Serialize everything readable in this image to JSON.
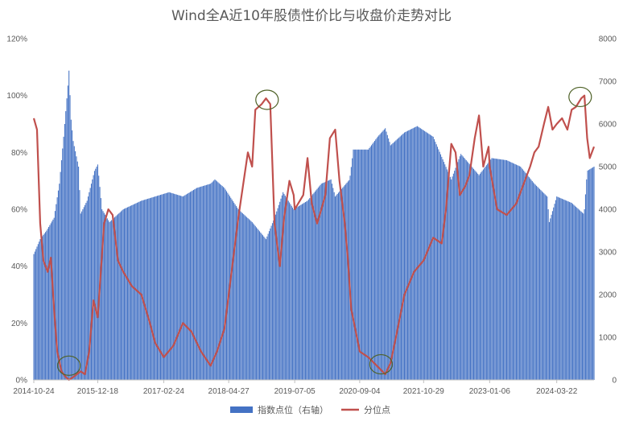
{
  "chart_data": {
    "type": "bar+line",
    "title": "Wind全A近10年股债性价比与收盘价走势对比",
    "x_tick_labels": [
      "2014-10-24",
      "2015-12-18",
      "2017-02-24",
      "2018-04-27",
      "2019-07-05",
      "2020-09-04",
      "2021-10-29",
      "2023-01-06",
      "2024-03-22"
    ],
    "y_left": {
      "ticks": [
        "0%",
        "20%",
        "40%",
        "60%",
        "80%",
        "100%",
        "120%"
      ],
      "min": 0,
      "max": 1.2
    },
    "y_right": {
      "ticks": [
        "0",
        "1000",
        "2000",
        "3000",
        "4000",
        "5000",
        "6000",
        "7000",
        "8000"
      ],
      "min": 0,
      "max": 8000
    },
    "series": [
      {
        "name": "指数点位（右轴）",
        "type": "bar",
        "axis": "right",
        "color": "#4472C4",
        "points": [
          [
            "2014-10-24",
            2950
          ],
          [
            "2014-12-05",
            3300
          ],
          [
            "2015-01-16",
            3500
          ],
          [
            "2015-03-06",
            3800
          ],
          [
            "2015-04-10",
            4600
          ],
          [
            "2015-05-08",
            5700
          ],
          [
            "2015-06-05",
            6900
          ],
          [
            "2015-06-12",
            7250
          ],
          [
            "2015-06-26",
            6100
          ],
          [
            "2015-07-10",
            5600
          ],
          [
            "2015-08-14",
            5000
          ],
          [
            "2015-08-28",
            3900
          ],
          [
            "2015-10-09",
            4200
          ],
          [
            "2015-11-27",
            4900
          ],
          [
            "2015-12-18",
            5050
          ],
          [
            "2016-01-15",
            4000
          ],
          [
            "2016-03-04",
            3700
          ],
          [
            "2016-06-03",
            4000
          ],
          [
            "2016-09-30",
            4200
          ],
          [
            "2016-12-30",
            4300
          ],
          [
            "2017-03-31",
            4400
          ],
          [
            "2017-06-30",
            4300
          ],
          [
            "2017-09-29",
            4500
          ],
          [
            "2017-12-29",
            4600
          ],
          [
            "2018-01-26",
            4700
          ],
          [
            "2018-03-30",
            4500
          ],
          [
            "2018-06-29",
            4000
          ],
          [
            "2018-09-28",
            3700
          ],
          [
            "2018-12-28",
            3300
          ],
          [
            "2019-02-22",
            3800
          ],
          [
            "2019-04-19",
            4400
          ],
          [
            "2019-06-28",
            4000
          ],
          [
            "2019-09-27",
            4200
          ],
          [
            "2019-12-27",
            4600
          ],
          [
            "2020-02-28",
            4700
          ],
          [
            "2020-03-27",
            4300
          ],
          [
            "2020-06-30",
            4700
          ],
          [
            "2020-07-24",
            5400
          ],
          [
            "2020-10-30",
            5400
          ],
          [
            "2020-12-31",
            5700
          ],
          [
            "2021-02-19",
            5900
          ],
          [
            "2021-03-26",
            5500
          ],
          [
            "2021-06-25",
            5800
          ],
          [
            "2021-09-17",
            5950
          ],
          [
            "2021-12-31",
            5700
          ],
          [
            "2022-04-29",
            4700
          ],
          [
            "2022-06-30",
            5300
          ],
          [
            "2022-10-28",
            4800
          ],
          [
            "2023-01-20",
            5200
          ],
          [
            "2023-04-28",
            5150
          ],
          [
            "2023-07-28",
            5000
          ],
          [
            "2023-10-27",
            4600
          ],
          [
            "2024-01-19",
            4300
          ],
          [
            "2024-02-02",
            3700
          ],
          [
            "2024-03-22",
            4300
          ],
          [
            "2024-06-28",
            4150
          ],
          [
            "2024-09-13",
            3900
          ],
          [
            "2024-09-20",
            4000
          ],
          [
            "2024-10-08",
            4900
          ],
          [
            "2024-11-22",
            5000
          ]
        ]
      },
      {
        "name": "分位点",
        "type": "line",
        "axis": "left",
        "color": "#C0504D",
        "points": [
          [
            "2014-10-24",
            0.92
          ],
          [
            "2014-11-14",
            0.88
          ],
          [
            "2014-12-05",
            0.55
          ],
          [
            "2014-12-26",
            0.42
          ],
          [
            "2015-01-23",
            0.38
          ],
          [
            "2015-02-13",
            0.43
          ],
          [
            "2015-03-06",
            0.25
          ],
          [
            "2015-03-27",
            0.1
          ],
          [
            "2015-04-24",
            0.03
          ],
          [
            "2015-05-22",
            0.01
          ],
          [
            "2015-06-12",
            0.0
          ],
          [
            "2015-07-10",
            0.01
          ],
          [
            "2015-08-28",
            0.03
          ],
          [
            "2015-09-25",
            0.02
          ],
          [
            "2015-10-23",
            0.1
          ],
          [
            "2015-11-20",
            0.28
          ],
          [
            "2015-12-18",
            0.22
          ],
          [
            "2016-01-29",
            0.55
          ],
          [
            "2016-02-26",
            0.6
          ],
          [
            "2016-03-25",
            0.58
          ],
          [
            "2016-04-29",
            0.42
          ],
          [
            "2016-06-03",
            0.38
          ],
          [
            "2016-07-29",
            0.33
          ],
          [
            "2016-09-30",
            0.3
          ],
          [
            "2016-11-25",
            0.2
          ],
          [
            "2016-12-30",
            0.13
          ],
          [
            "2017-02-24",
            0.08
          ],
          [
            "2017-04-28",
            0.12
          ],
          [
            "2017-06-30",
            0.2
          ],
          [
            "2017-08-25",
            0.17
          ],
          [
            "2017-10-27",
            0.1
          ],
          [
            "2017-12-29",
            0.05
          ],
          [
            "2018-02-09",
            0.1
          ],
          [
            "2018-03-30",
            0.18
          ],
          [
            "2018-04-27",
            0.3
          ],
          [
            "2018-06-29",
            0.57
          ],
          [
            "2018-08-31",
            0.8
          ],
          [
            "2018-09-28",
            0.75
          ],
          [
            "2018-10-19",
            0.95
          ],
          [
            "2018-11-30",
            0.97
          ],
          [
            "2018-12-28",
            0.99
          ],
          [
            "2019-01-25",
            0.97
          ],
          [
            "2019-02-22",
            0.55
          ],
          [
            "2019-03-29",
            0.4
          ],
          [
            "2019-04-26",
            0.57
          ],
          [
            "2019-05-31",
            0.7
          ],
          [
            "2019-06-28",
            0.65
          ],
          [
            "2019-07-05",
            0.6
          ],
          [
            "2019-08-30",
            0.65
          ],
          [
            "2019-09-27",
            0.78
          ],
          [
            "2019-10-25",
            0.62
          ],
          [
            "2019-11-29",
            0.55
          ],
          [
            "2019-12-27",
            0.6
          ],
          [
            "2020-01-22",
            0.65
          ],
          [
            "2020-02-21",
            0.85
          ],
          [
            "2020-03-27",
            0.88
          ],
          [
            "2020-04-24",
            0.7
          ],
          [
            "2020-05-29",
            0.55
          ],
          [
            "2020-06-19",
            0.42
          ],
          [
            "2020-07-10",
            0.25
          ],
          [
            "2020-08-28",
            0.12
          ],
          [
            "2020-09-04",
            0.1
          ],
          [
            "2020-10-30",
            0.08
          ],
          [
            "2020-12-25",
            0.05
          ],
          [
            "2021-02-19",
            0.02
          ],
          [
            "2021-03-26",
            0.06
          ],
          [
            "2021-04-30",
            0.15
          ],
          [
            "2021-06-25",
            0.3
          ],
          [
            "2021-08-27",
            0.38
          ],
          [
            "2021-10-29",
            0.42
          ],
          [
            "2021-12-31",
            0.5
          ],
          [
            "2022-02-25",
            0.48
          ],
          [
            "2022-03-25",
            0.6
          ],
          [
            "2022-04-29",
            0.83
          ],
          [
            "2022-05-27",
            0.8
          ],
          [
            "2022-06-24",
            0.65
          ],
          [
            "2022-07-29",
            0.68
          ],
          [
            "2022-08-26",
            0.72
          ],
          [
            "2022-09-30",
            0.85
          ],
          [
            "2022-10-28",
            0.93
          ],
          [
            "2022-11-25",
            0.75
          ],
          [
            "2022-12-30",
            0.82
          ],
          [
            "2023-01-06",
            0.75
          ],
          [
            "2023-02-24",
            0.6
          ],
          [
            "2023-04-28",
            0.58
          ],
          [
            "2023-06-30",
            0.62
          ],
          [
            "2023-08-25",
            0.7
          ],
          [
            "2023-09-29",
            0.75
          ],
          [
            "2023-10-27",
            0.8
          ],
          [
            "2023-11-24",
            0.82
          ],
          [
            "2023-12-29",
            0.9
          ],
          [
            "2024-01-26",
            0.96
          ],
          [
            "2024-02-23",
            0.88
          ],
          [
            "2024-03-22",
            0.9
          ],
          [
            "2024-04-26",
            0.92
          ],
          [
            "2024-05-31",
            0.88
          ],
          [
            "2024-06-28",
            0.95
          ],
          [
            "2024-07-26",
            0.96
          ],
          [
            "2024-08-30",
            0.99
          ],
          [
            "2024-09-20",
            1.0
          ],
          [
            "2024-10-08",
            0.85
          ],
          [
            "2024-10-25",
            0.78
          ],
          [
            "2024-11-22",
            0.82
          ]
        ]
      }
    ],
    "highlight_circles": [
      {
        "date": "2015-06-12",
        "value": 0.05
      },
      {
        "date": "2019-01-04",
        "value": 0.985
      },
      {
        "date": "2021-01-22",
        "value": 0.055
      },
      {
        "date": "2024-08-23",
        "value": 0.995
      }
    ],
    "legend_position": "bottom",
    "grid": false
  }
}
